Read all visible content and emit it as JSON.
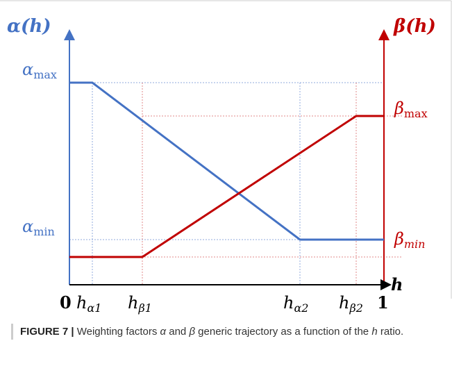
{
  "figure": {
    "y_left_label": {
      "base": "α",
      "arg": "(h)"
    },
    "y_right_label": {
      "base": "β",
      "arg": "(h)"
    },
    "x_axis_label": "h",
    "left_levels": [
      {
        "base": "α",
        "sub": "max"
      },
      {
        "base": "α",
        "sub": "min"
      }
    ],
    "right_levels": [
      {
        "base": "β",
        "sub": "max"
      },
      {
        "base": "β",
        "sub": "min"
      }
    ],
    "x_ticks": [
      {
        "base": "0",
        "sub": ""
      },
      {
        "base": "h",
        "sub": "α1"
      },
      {
        "base": "h",
        "sub": "β1"
      },
      {
        "base": "h",
        "sub": "α2"
      },
      {
        "base": "h",
        "sub": "β2"
      },
      {
        "base": "1",
        "sub": ""
      }
    ]
  },
  "caption": {
    "label": "FIGURE 7 |",
    "parts": [
      " Weighting factors ",
      "α",
      " and ",
      "β",
      " generic trajectory as a function of the ",
      "h",
      " ratio."
    ]
  }
}
